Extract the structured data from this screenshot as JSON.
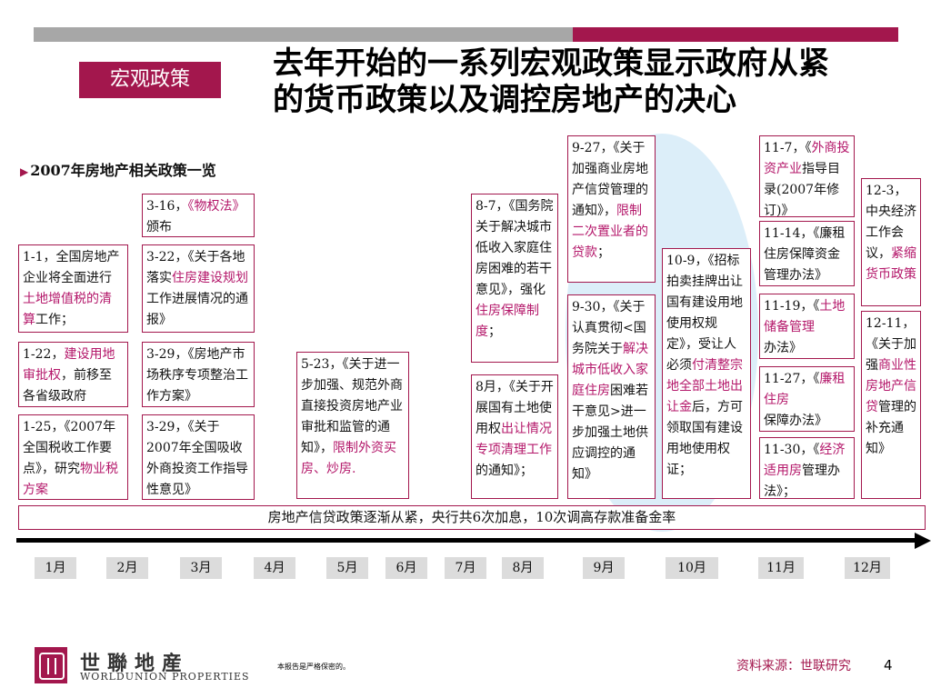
{
  "header": {
    "section_tag": "宏观政策",
    "title_line1": "去年开始的一系列宏观政策显示政府从紧",
    "title_line2": "的货币政策以及调控房地产的决心"
  },
  "subheading": "2007年房地产相关政策一览",
  "boxes": {
    "b1": {
      "text": "1-1，全国房地产企业将全面进行",
      "red": "土地增值税的清算",
      "tail": "工作；"
    },
    "b2": {
      "pre": "1-22，",
      "red": "建设用地审批权",
      "tail": "，前移至各省级政府"
    },
    "b3": {
      "pre": "1-25，《2007年全国税收工作要点》，研究",
      "red": "物业税方案",
      "tail": ""
    },
    "b4": {
      "pre": "3-16，",
      "red": "《物权法》",
      "tail": "颁布"
    },
    "b5": {
      "pre": "3-22，《关于各地落实",
      "red": "住房建设规划",
      "tail": "工作进展情况的通报》"
    },
    "b6": {
      "text": "3-29，《房地产市场秩序专项整治工作方案》"
    },
    "b7": {
      "text": "3-29，《关于2007年全国吸收外商投资工作指导性意见》"
    },
    "b8": {
      "pre": "5-23，《关于进一步加强、规范外商直接投资房地产业审批和监管的通知》，",
      "red": "限制外资买房、炒房.",
      "tail": ""
    },
    "b9": {
      "pre": "8-7，《国务院关于解决城市低收入家庭住房困难的若干意见》，强化",
      "red": "住房保障制度",
      "tail": "；"
    },
    "b10": {
      "pre": "8月，《关于开展国有土地使用权",
      "red": "出让情况专项清理工作",
      "tail": "的通知》；"
    },
    "b11": {
      "pre": "9-27，《关于加强商业房地产信贷管理的通知》，",
      "red": "限制二次置业者的贷款",
      "tail": "；"
    },
    "b12": {
      "pre": "9-30，《关于认真贯彻<国务院关于",
      "red": "解决城市低收入家庭住房",
      "tail": "困难若干意见>进一步加强土地供应调控的通知》"
    },
    "b13": {
      "pre": "10-9，《招标拍卖挂牌出让国有建设用地使用权规定》，受让人必须",
      "red": "付清整宗地全部土地出让金",
      "tail": "后，方可领取国有建设用地使用权证；"
    },
    "b14": {
      "pre": "11-7，《",
      "red": "外商投资产业",
      "tail": "指导目录(2007年修订)》"
    },
    "b15": {
      "text": "11-14，《廉租住房保障资金管理办法》"
    },
    "b16": {
      "pre": "11-19，《",
      "red": "土地储备管理",
      "tail": "办法》"
    },
    "b17": {
      "pre": "11-27，《",
      "red": "廉租住房",
      "tail": "保障办法》"
    },
    "b18": {
      "pre": "11-30，《",
      "red": "经济适用房",
      "tail": "管理办法》；"
    },
    "b19": {
      "pre": "12-3，中央经济工作会议，",
      "red": "紧缩货币政策",
      "tail": ""
    },
    "b20": {
      "pre": "12-11，《关于加强",
      "red": "商业性房地产信贷",
      "tail": "管理的补充通知》"
    }
  },
  "banner": "房地产信贷政策逐渐从紧，央行共6次加息，10次调高存款准备金率",
  "months": [
    "1月",
    "2月",
    "3月",
    "4月",
    "5月",
    "6月",
    "7月",
    "8月",
    "9月",
    "10月",
    "11月",
    "12月"
  ],
  "footer": {
    "logo_cn": "世聯地産",
    "logo_en": "WORLDUNION PROPERTIES",
    "confidential": "本报告是严格保密的。",
    "source": "资料来源：世联研究",
    "page": "4"
  },
  "colors": {
    "accent": "#a3174d",
    "highlight_text": "#b4176a",
    "circle": "#dceef9",
    "bar_gray": "#a7a7a7"
  }
}
